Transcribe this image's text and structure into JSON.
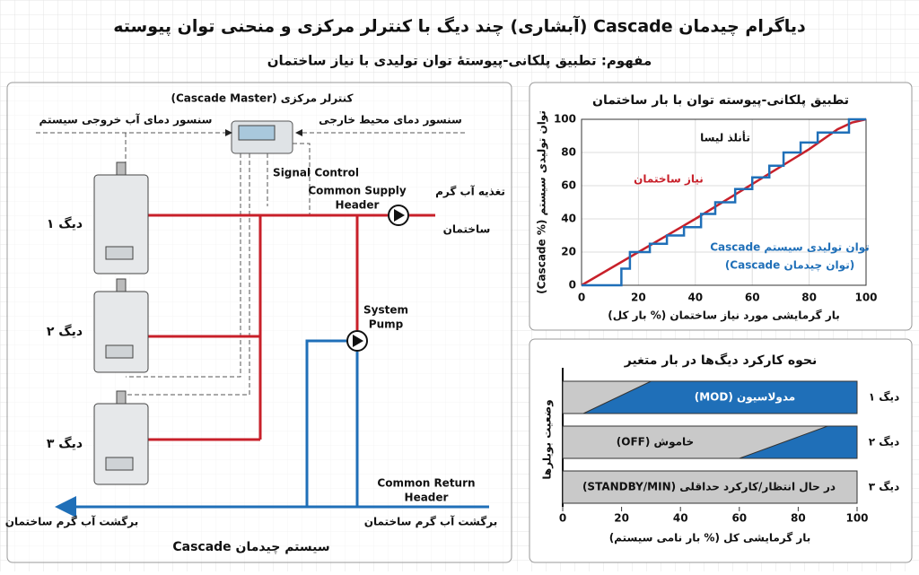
{
  "header": {
    "title": "دیاگرام چیدمان Cascade (آبشاری) چند دیگ با کنترلر مرکزی و منحنی توان پیوسته",
    "subtitle": "مفهوم: تطبیق پلکانی-پیوستهٔ توان تولیدی با نیاز ساختمان"
  },
  "diagram": {
    "controller": "کنترلر مرکزی (Cascade Master)",
    "sensor_outlet": "سنسور دمای آب خروجی سیستم",
    "sensor_ambient": "سنسور دمای محیط خارجی",
    "signal": "Signal Control",
    "supply_header": [
      "Common Supply",
      "Header"
    ],
    "supply_label": [
      "تغذیه آب گرم",
      "ساختمان"
    ],
    "boilers": [
      "دیگ ۱",
      "دیگ ۲",
      "دیگ ۳"
    ],
    "pump": [
      "System",
      "Pump"
    ],
    "return_header": [
      "Common Return",
      "Header"
    ],
    "return_left": "برگشت آب گرم ساختمان",
    "return_right": "برگشت آب گرم ساختمان",
    "footer": "سیستم چیدمان Cascade"
  },
  "chart_data": [
    {
      "type": "line",
      "title": "تطبیق پلکانی-پیوسته توان با بار ساختمان",
      "x_label": "بار گرمایشی مورد نیاز ساختمان (% بار کل)",
      "y_label": "توان تولیدی سیستم (% Cascade)",
      "xlim": [
        0,
        100
      ],
      "ylim": [
        0,
        100
      ],
      "xticks": [
        0,
        20,
        40,
        60,
        80,
        100
      ],
      "yticks": [
        0,
        20,
        40,
        60,
        80,
        100
      ],
      "grid": true,
      "series": [
        {
          "name": "نیاز ساختمان",
          "color": "#c8202a",
          "x": [
            0,
            20,
            40,
            60,
            80,
            90,
            95,
            100
          ],
          "values": [
            0,
            20,
            40,
            61,
            82,
            94,
            98,
            100
          ]
        },
        {
          "name": "توان تولیدی سیستم Cascade",
          "color": "#1f6fb8",
          "x": [
            0,
            14,
            14,
            17,
            17,
            24,
            24,
            30,
            30,
            36,
            36,
            42,
            42,
            47,
            47,
            54,
            54,
            60,
            60,
            66,
            66,
            71,
            71,
            77,
            77,
            83,
            83,
            94,
            94,
            100
          ],
          "values": [
            0,
            0,
            10,
            10,
            20,
            20,
            25,
            25,
            30,
            30,
            35,
            35,
            43,
            43,
            50,
            50,
            58,
            58,
            65,
            65,
            72,
            72,
            80,
            80,
            86,
            86,
            92,
            92,
            100,
            100
          ]
        }
      ],
      "annotations": [
        "تأنلذ لیسا",
        "(توان چیدمان Cascade)"
      ]
    },
    {
      "type": "status",
      "title": "نحوه کارکرد دیگ‌ها در بار متغیر",
      "x_label": "بار گرمایشی کل (% بار نامی سیستم)",
      "y_label": "وضعیت بویلرها",
      "categories": [
        "دیگ ۱",
        "دیگ ۲",
        "دیگ ۳"
      ],
      "xlim": [
        0,
        100
      ],
      "xticks": [
        0,
        20,
        40,
        60,
        80,
        100
      ],
      "ramp_start": [
        7,
        60,
        null
      ],
      "ramp_end": [
        30,
        90,
        null
      ],
      "state_labels": [
        "مدولاسیون (MOD)",
        "خاموش (OFF)",
        "در حال انتظار/کارکرد حداقلی (STANDBY/MIN)"
      ],
      "off_color": "#c9c9c9",
      "on_color": "#1f6fb8"
    }
  ]
}
